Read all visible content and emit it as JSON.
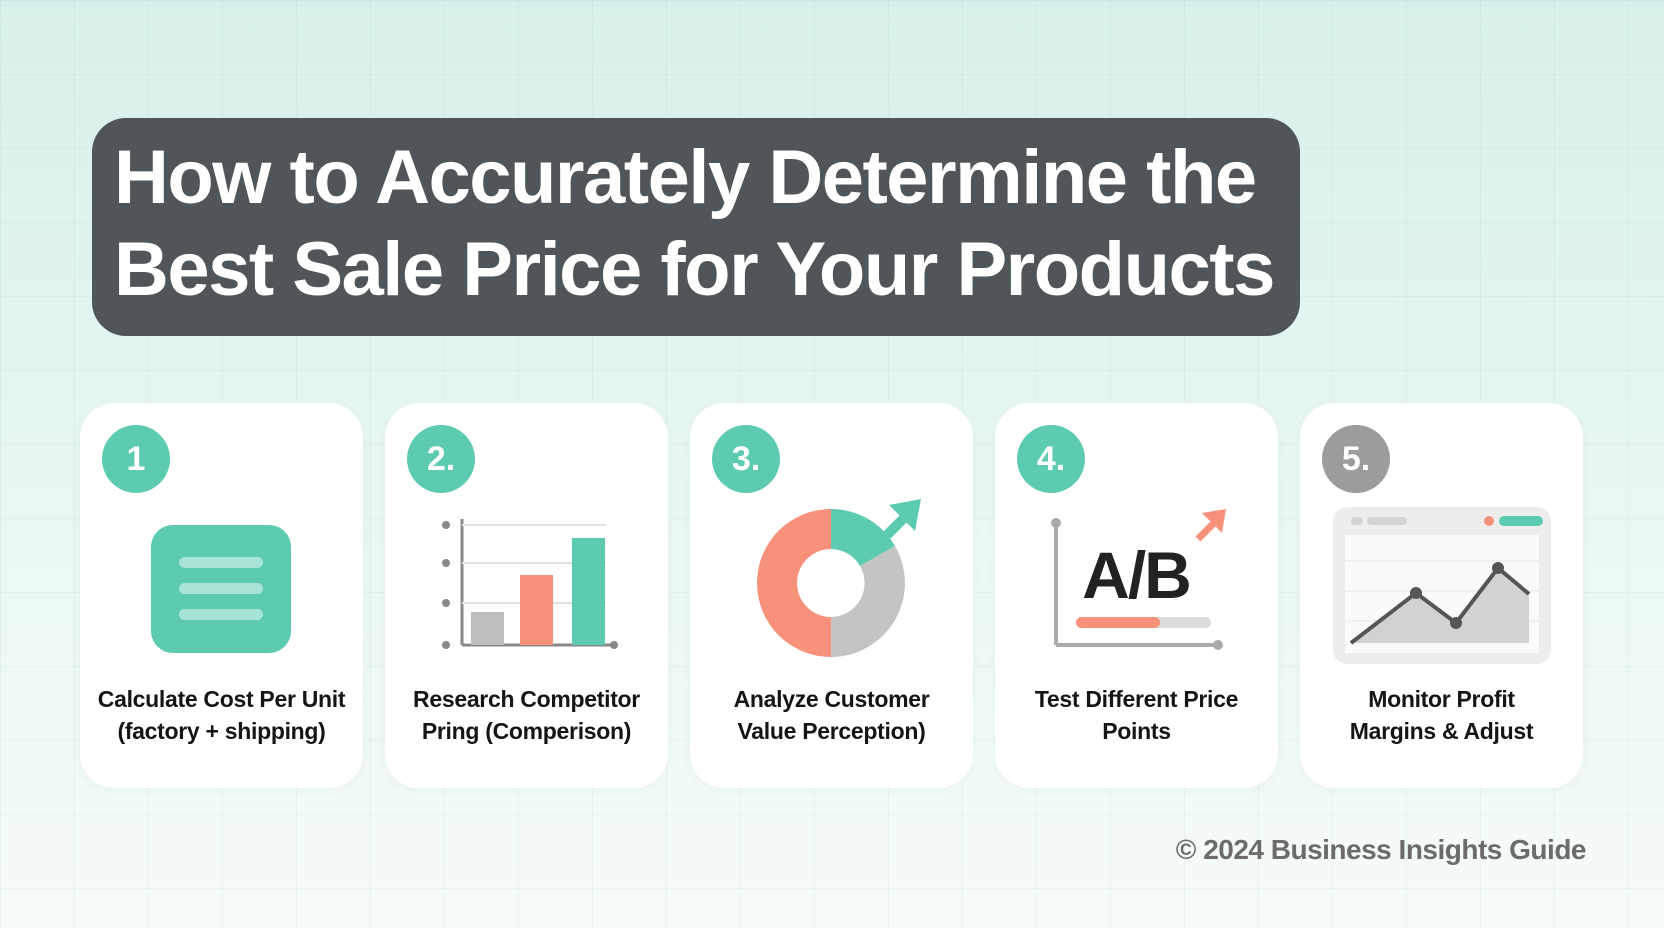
{
  "header": {
    "title_lines": [
      "How to Accurately Determine the",
      "Best Sale Price for Your Products"
    ]
  },
  "steps": [
    {
      "number": "1",
      "label_lines": [
        "Calculate Cost Per Unit",
        "(factory + shipping)"
      ]
    },
    {
      "number": "2.",
      "label_lines": [
        "Research Competitor",
        "Pring (Comperison)"
      ]
    },
    {
      "number": "3.",
      "label_lines": [
        "Analyze Customer",
        "Value Perception)"
      ]
    },
    {
      "number": "4.",
      "label_lines": [
        "Test Different Price",
        "Points"
      ],
      "icon_text": "A/B"
    },
    {
      "number": "5.",
      "label_lines": [
        "Monitor Profit",
        "Margins & Adjust"
      ]
    }
  ],
  "footer": {
    "copyright": "© 2024 Business Insights Guide"
  }
}
